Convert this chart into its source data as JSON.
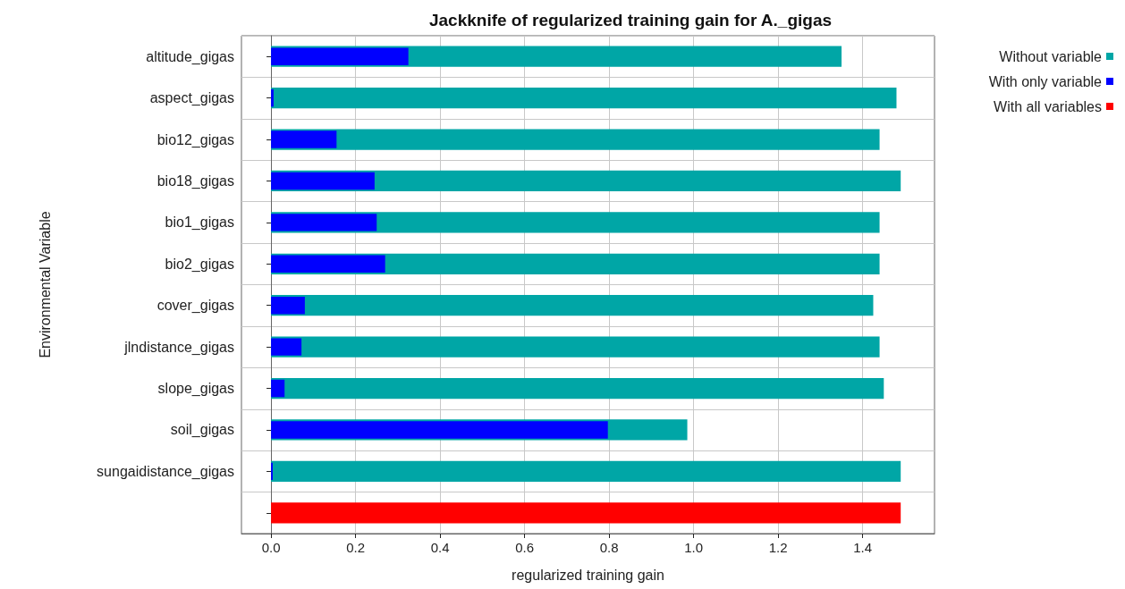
{
  "chart_data": {
    "type": "bar",
    "orientation": "horizontal",
    "title": "Jackknife of regularized training gain for A._gigas",
    "xlabel": "regularized training gain",
    "ylabel": "Environmental Variable",
    "categories": [
      "altitude_gigas",
      "aspect_gigas",
      "bio12_gigas",
      "bio18_gigas",
      "bio1_gigas",
      "bio2_gigas",
      "cover_gigas",
      "jlndistance_gigas",
      "slope_gigas",
      "soil_gigas",
      "sungaidistance_gigas",
      null
    ],
    "series": [
      {
        "name": "Without variable",
        "color": "#00a6a6",
        "values": [
          1.35,
          1.48,
          1.44,
          1.49,
          1.44,
          1.44,
          1.425,
          1.44,
          1.45,
          0.985,
          1.49,
          null
        ]
      },
      {
        "name": "With only variable",
        "color": "#0000ff",
        "values": [
          0.325,
          0.006,
          0.155,
          0.245,
          0.25,
          0.27,
          0.08,
          0.072,
          0.032,
          0.797,
          0.004,
          null
        ]
      },
      {
        "name": "With all variables",
        "color": "#ff0000",
        "values": [
          null,
          null,
          null,
          null,
          null,
          null,
          null,
          null,
          null,
          null,
          null,
          1.49
        ]
      }
    ],
    "xlim": [
      -0.07,
      1.57
    ],
    "xticks": [
      {
        "value": 0,
        "label": "0.0"
      },
      0.2,
      0.4,
      0.6,
      0.8,
      {
        "value": 1,
        "label": "1.0"
      },
      1.2,
      1.4
    ],
    "grid": true,
    "legend": "top right"
  }
}
